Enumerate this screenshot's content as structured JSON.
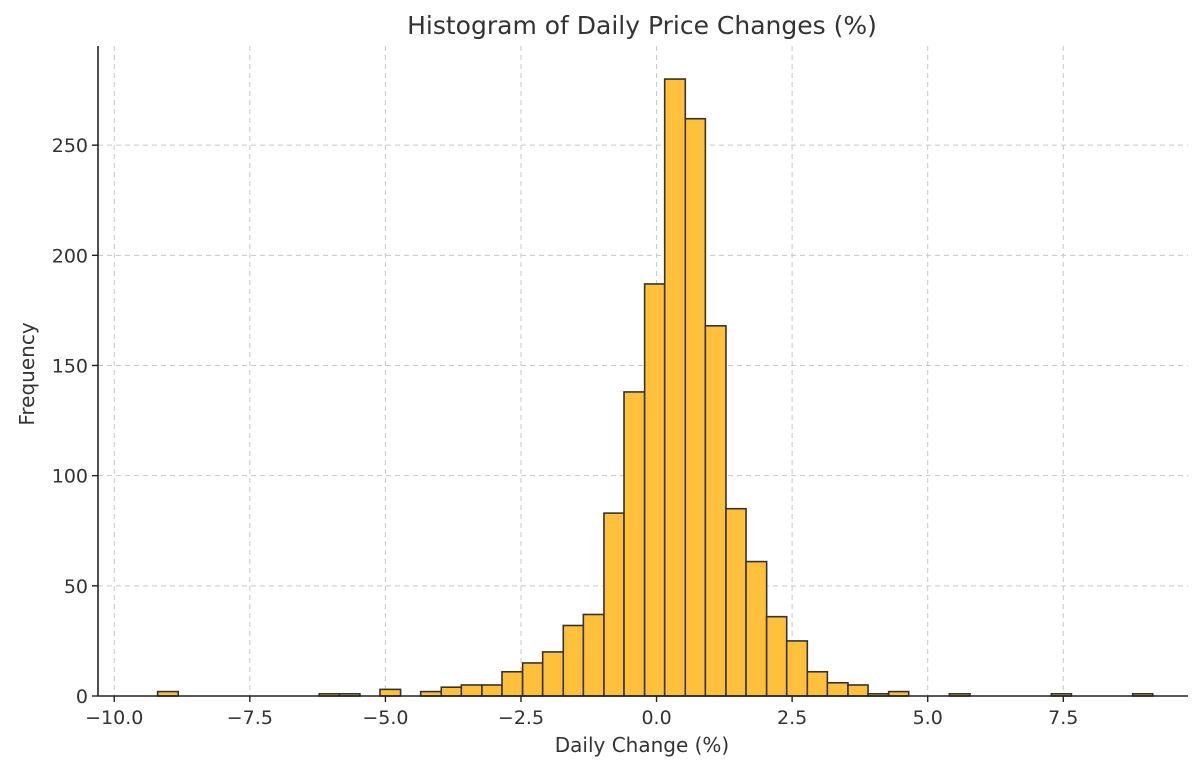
{
  "chart_data": {
    "type": "bar",
    "title": "Histogram of Daily Price Changes (%)",
    "xlabel": "Daily Change (%)",
    "ylabel": "Frequency",
    "xlim": [
      -10.3,
      9.8
    ],
    "ylim": [
      0,
      295
    ],
    "grid": true,
    "bar_color": "#FFC13B",
    "edge_color": "#333333",
    "x_ticks": [
      {
        "value": -10.0,
        "label": "−10.0"
      },
      {
        "value": -7.5,
        "label": "−7.5"
      },
      {
        "value": -5.0,
        "label": "−5.0"
      },
      {
        "value": -2.5,
        "label": "−2.5"
      },
      {
        "value": 0.0,
        "label": "0.0"
      },
      {
        "value": 2.5,
        "label": "2.5"
      },
      {
        "value": 5.0,
        "label": "5.0"
      },
      {
        "value": 7.5,
        "label": "7.5"
      }
    ],
    "y_ticks": [
      {
        "value": 0,
        "label": "0"
      },
      {
        "value": 50,
        "label": "50"
      },
      {
        "value": 100,
        "label": "100"
      },
      {
        "value": 150,
        "label": "150"
      },
      {
        "value": 200,
        "label": "200"
      },
      {
        "value": 250,
        "label": "250"
      }
    ],
    "bins": [
      {
        "x0": -9.57,
        "x1": -9.2,
        "value": 0
      },
      {
        "x0": -9.2,
        "x1": -8.82,
        "value": 2
      },
      {
        "x0": -6.22,
        "x1": -5.85,
        "value": 1
      },
      {
        "x0": -5.85,
        "x1": -5.47,
        "value": 1
      },
      {
        "x0": -5.1,
        "x1": -4.72,
        "value": 3
      },
      {
        "x0": -4.35,
        "x1": -3.97,
        "value": 2
      },
      {
        "x0": -3.97,
        "x1": -3.6,
        "value": 4
      },
      {
        "x0": -3.6,
        "x1": -3.22,
        "value": 5
      },
      {
        "x0": -3.22,
        "x1": -2.85,
        "value": 5
      },
      {
        "x0": -2.85,
        "x1": -2.47,
        "value": 11
      },
      {
        "x0": -2.47,
        "x1": -2.1,
        "value": 15
      },
      {
        "x0": -2.1,
        "x1": -1.72,
        "value": 20
      },
      {
        "x0": -1.72,
        "x1": -1.35,
        "value": 32
      },
      {
        "x0": -1.35,
        "x1": -0.97,
        "value": 37
      },
      {
        "x0": -0.97,
        "x1": -0.6,
        "value": 83
      },
      {
        "x0": -0.6,
        "x1": -0.22,
        "value": 138
      },
      {
        "x0": -0.22,
        "x1": 0.15,
        "value": 187
      },
      {
        "x0": 0.15,
        "x1": 0.53,
        "value": 280
      },
      {
        "x0": 0.53,
        "x1": 0.9,
        "value": 262
      },
      {
        "x0": 0.9,
        "x1": 1.28,
        "value": 168
      },
      {
        "x0": 1.28,
        "x1": 1.65,
        "value": 85
      },
      {
        "x0": 1.65,
        "x1": 2.03,
        "value": 61
      },
      {
        "x0": 2.03,
        "x1": 2.4,
        "value": 36
      },
      {
        "x0": 2.4,
        "x1": 2.78,
        "value": 25
      },
      {
        "x0": 2.78,
        "x1": 3.15,
        "value": 11
      },
      {
        "x0": 3.15,
        "x1": 3.53,
        "value": 6
      },
      {
        "x0": 3.53,
        "x1": 3.9,
        "value": 5
      },
      {
        "x0": 3.9,
        "x1": 4.28,
        "value": 1
      },
      {
        "x0": 4.28,
        "x1": 4.65,
        "value": 2
      },
      {
        "x0": 5.4,
        "x1": 5.78,
        "value": 1
      },
      {
        "x0": 7.28,
        "x1": 7.65,
        "value": 1
      },
      {
        "x0": 8.78,
        "x1": 9.15,
        "value": 1
      }
    ]
  }
}
